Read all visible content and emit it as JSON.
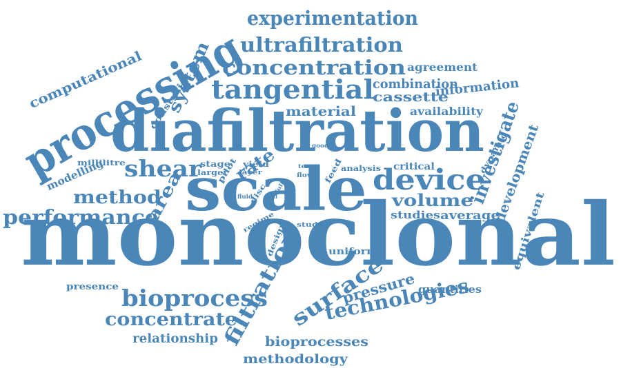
{
  "colors": {
    "word": "#4a86b8",
    "background": "#ffffff"
  },
  "words": [
    "monoclonal",
    "diafiltration",
    "scale",
    "processing",
    "tangential",
    "concentration",
    "ultrafiltration",
    "experimentation",
    "device",
    "shear",
    "performance",
    "method",
    "bioprocess",
    "concentrate",
    "technologies",
    "filtration",
    "surface",
    "investigate",
    "development",
    "volume",
    "area",
    "computational",
    "system",
    "material",
    "combination",
    "cassette",
    "information",
    "agreement",
    "availability",
    "pressure",
    "relationship",
    "bioprocesses",
    "methodology",
    "modelling",
    "average",
    "studies",
    "equivalent",
    "quantities",
    "presence",
    "uniform",
    "rate",
    "constraint",
    "millilitre",
    "stage",
    "larger",
    "pilot",
    "yield",
    "layer",
    "term",
    "flow",
    "feed",
    "analysis",
    "critical",
    "dynamic",
    "good",
    "fluid",
    "disc",
    "cell",
    "full",
    "regime",
    "design",
    "study"
  ]
}
